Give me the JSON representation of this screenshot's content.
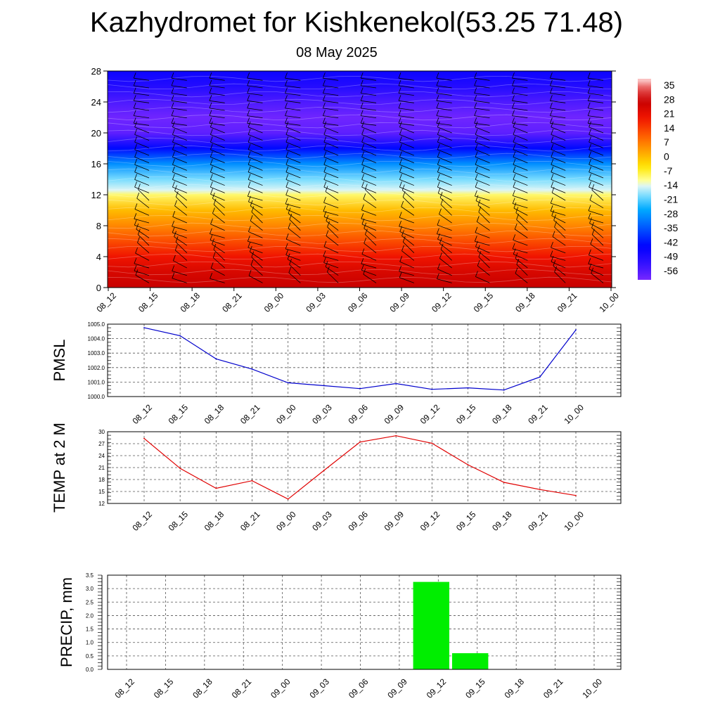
{
  "header": {
    "title": "Kazhydromet for Kishkenekol(53.25 71.48)",
    "date": "08 May 2025"
  },
  "time_labels": [
    "08_12",
    "08_15",
    "08_18",
    "08_21",
    "09_00",
    "09_03",
    "09_06",
    "09_09",
    "09_12",
    "09_15",
    "09_18",
    "09_21",
    "10_00"
  ],
  "colors": {
    "pmsl_line": "#0000cc",
    "temp_line": "#e00000",
    "precip_bar": "#00ee00",
    "grid": "#555555"
  },
  "chart_data": [
    {
      "type": "heatmap",
      "name": "temperature-cross-section",
      "x": [
        "08_12",
        "08_15",
        "08_18",
        "08_21",
        "09_00",
        "09_03",
        "09_06",
        "09_09",
        "09_12",
        "09_15",
        "09_18",
        "09_21",
        "10_00"
      ],
      "ylim": [
        0,
        28
      ],
      "yticks": [
        0,
        4,
        8,
        12,
        16,
        20,
        24,
        28
      ],
      "profile": {
        "heights": [
          0,
          2,
          4,
          6,
          8,
          10,
          12,
          12.6,
          14,
          16,
          18,
          20,
          22,
          24,
          26,
          28
        ],
        "temps": [
          28,
          25,
          20,
          13,
          6,
          0,
          -10,
          -15,
          -20,
          -30,
          -45,
          -60,
          -62,
          -58,
          -52,
          -48
        ]
      },
      "colorbar_labels": [
        "35",
        "28",
        "21",
        "14",
        "7",
        "0",
        "-7",
        "-14",
        "-21",
        "-28",
        "-35",
        "-42",
        "-49",
        "-56"
      ],
      "colorbar_values": [
        35,
        28,
        21,
        14,
        7,
        0,
        -7,
        -14,
        -21,
        -28,
        -35,
        -42,
        -49,
        -56
      ],
      "wind_barbs": true
    },
    {
      "type": "line",
      "name": "pmsl",
      "ylabel": "PMSL",
      "x": [
        "08_12",
        "08_15",
        "08_18",
        "08_21",
        "09_00",
        "09_03",
        "09_06",
        "09_09",
        "09_12",
        "09_15",
        "09_18",
        "09_21",
        "10_00"
      ],
      "values": [
        1004.75,
        1004.2,
        1002.6,
        1001.9,
        1000.95,
        1000.75,
        1000.55,
        1000.9,
        1000.5,
        1000.6,
        1000.45,
        1001.35,
        1004.6
      ],
      "ylim": [
        1000.0,
        1005.0
      ],
      "yticks": [
        "1000.0",
        "1001.0",
        "1002.0",
        "1003.0",
        "1004.0",
        "1005.0"
      ]
    },
    {
      "type": "line",
      "name": "temp-2m",
      "ylabel": "TEMP at 2 M",
      "x": [
        "08_12",
        "08_15",
        "08_18",
        "08_21",
        "09_00",
        "09_03",
        "09_06",
        "09_09",
        "09_12",
        "09_15",
        "09_18",
        "09_21",
        "10_00"
      ],
      "values": [
        28.3,
        20.8,
        15.8,
        17.7,
        13.1,
        20.3,
        27.4,
        29.0,
        27.1,
        21.7,
        17.3,
        15.5,
        14.0
      ],
      "ylim": [
        12,
        30
      ],
      "yticks": [
        "12",
        "15",
        "18",
        "21",
        "24",
        "27",
        "30"
      ]
    },
    {
      "type": "bar",
      "name": "precip",
      "ylabel": "PRECIP, mm",
      "categories": [
        "08_12",
        "08_15",
        "08_18",
        "08_21",
        "09_00",
        "09_03",
        "09_06",
        "09_09",
        "09_12",
        "09_15",
        "09_18",
        "09_21",
        "10_00"
      ],
      "values": [
        0,
        0,
        0,
        0,
        0,
        0,
        0,
        0,
        3.25,
        0.6,
        0,
        0,
        0
      ],
      "ylim": [
        0,
        3.5
      ],
      "yticks": [
        "0.0",
        "0.5",
        "1.0",
        "1.5",
        "2.0",
        "2.5",
        "3.0",
        "3.5"
      ]
    }
  ]
}
